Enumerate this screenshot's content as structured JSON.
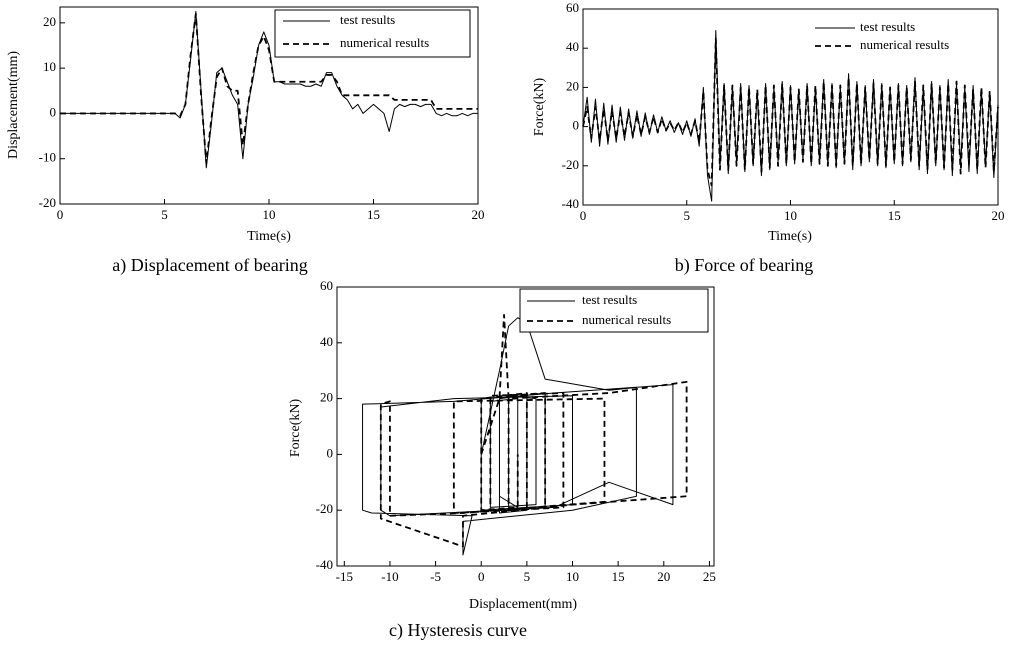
{
  "chart_data": [
    {
      "type": "line",
      "caption": "a) Displacement of bearing",
      "x_label": "Time(s)",
      "y_label": "Displacement(mm)",
      "x": [
        0,
        0.25,
        0.5,
        0.75,
        1,
        1.25,
        1.5,
        1.75,
        2,
        2.25,
        2.5,
        2.75,
        3,
        3.25,
        3.5,
        3.75,
        4,
        4.25,
        4.5,
        4.75,
        5,
        5.25,
        5.5,
        5.75,
        6,
        6.25,
        6.5,
        6.75,
        7,
        7.25,
        7.5,
        7.75,
        8,
        8.25,
        8.5,
        8.75,
        9,
        9.25,
        9.5,
        9.75,
        10,
        10.25,
        10.5,
        10.75,
        11,
        11.25,
        11.5,
        11.75,
        12,
        12.25,
        12.5,
        12.75,
        13,
        13.25,
        13.5,
        13.75,
        14,
        14.25,
        14.5,
        14.75,
        15,
        15.25,
        15.5,
        15.75,
        16,
        16.25,
        16.5,
        16.75,
        17,
        17.25,
        17.5,
        17.75,
        18,
        18.25,
        18.5,
        18.75,
        19,
        19.25,
        19.5,
        19.75,
        20
      ],
      "series": [
        {
          "name": "test results",
          "color": "#000000",
          "style": "solid",
          "values": [
            0,
            0,
            0,
            0,
            0,
            0,
            0,
            0,
            0,
            0,
            0,
            0,
            0,
            0,
            0,
            0,
            0,
            0,
            0,
            0,
            0,
            0,
            0,
            -1,
            2,
            12,
            22.5,
            5,
            -12,
            -2,
            9,
            10,
            7,
            4,
            2,
            -10,
            2,
            8,
            15,
            18,
            15,
            7,
            7,
            6.5,
            6.5,
            6.5,
            6.5,
            6,
            6,
            6.5,
            6,
            9,
            9,
            6,
            4,
            3,
            1,
            2,
            0,
            1,
            2,
            1,
            0,
            -4,
            1,
            2,
            1.5,
            2,
            2,
            1.5,
            2,
            2,
            0,
            -0.5,
            0,
            -0.5,
            -0.5,
            0,
            -0.5,
            0,
            0
          ]
        },
        {
          "name": "numerical results",
          "color": "#000000",
          "style": "dashed",
          "values": [
            0,
            0,
            0,
            0,
            0,
            0,
            0,
            0,
            0,
            0,
            0,
            0,
            0,
            0,
            0,
            0,
            0,
            0,
            0,
            0,
            0,
            0,
            0,
            -0.5,
            2,
            13,
            22,
            4,
            -11,
            -1,
            8,
            10,
            6,
            5,
            5,
            -7,
            2,
            9,
            15,
            17,
            14,
            7,
            7,
            7,
            7,
            7,
            7,
            7,
            7,
            7,
            7,
            8.5,
            8.5,
            7,
            4,
            4,
            4,
            4,
            4,
            4,
            4,
            4,
            4,
            4,
            3,
            3,
            3,
            3,
            3,
            3,
            3,
            3,
            1,
            1,
            1,
            1,
            1,
            1,
            1,
            1,
            1
          ]
        }
      ],
      "xlim": [
        0,
        20
      ],
      "xticks": [
        0,
        5,
        10,
        15,
        20
      ],
      "ylim": [
        -20,
        23.5
      ],
      "yticks": [
        -20,
        -10,
        0,
        10,
        20
      ]
    },
    {
      "type": "line",
      "caption": "b) Force of bearing",
      "x_label": "Time(s)",
      "y_label": "Force(kN)",
      "x": [
        0,
        0.2,
        0.4,
        0.6,
        0.8,
        1,
        1.2,
        1.4,
        1.6,
        1.8,
        2,
        2.2,
        2.4,
        2.6,
        2.8,
        3,
        3.2,
        3.4,
        3.6,
        3.8,
        4,
        4.2,
        4.4,
        4.6,
        4.8,
        5,
        5.2,
        5.4,
        5.6,
        5.8,
        6,
        6.2,
        6.4,
        6.6,
        6.8,
        7,
        7.2,
        7.4,
        7.6,
        7.8,
        8,
        8.2,
        8.4,
        8.6,
        8.8,
        9,
        9.2,
        9.4,
        9.6,
        9.8,
        10,
        10.2,
        10.4,
        10.6,
        10.8,
        11,
        11.2,
        11.4,
        11.6,
        11.8,
        12,
        12.2,
        12.4,
        12.6,
        12.8,
        13,
        13.2,
        13.4,
        13.6,
        13.8,
        14,
        14.2,
        14.4,
        14.6,
        14.8,
        15,
        15.2,
        15.4,
        15.6,
        15.8,
        16,
        16.2,
        16.4,
        16.6,
        16.8,
        17,
        17.2,
        17.4,
        17.6,
        17.8,
        18,
        18.2,
        18.4,
        18.6,
        18.8,
        19,
        19.2,
        19.4,
        19.6,
        19.8,
        20
      ],
      "series": [
        {
          "name": "test results",
          "color": "#000000",
          "style": "solid",
          "values": [
            0,
            15,
            -8,
            14,
            -10,
            12,
            -9,
            11,
            -8,
            10,
            -7,
            9,
            -6,
            8,
            -5,
            7,
            -4,
            6,
            -3,
            5,
            -2,
            3,
            -3,
            2,
            -4,
            3,
            -5,
            4,
            -10,
            20,
            -25,
            -38,
            49,
            -20,
            22,
            -24,
            20,
            -18,
            22,
            -23,
            21,
            -20,
            18,
            -25,
            22,
            -22,
            20,
            -18,
            23,
            -20,
            21,
            -19,
            18,
            -17,
            22,
            -20,
            20,
            -18,
            24,
            -20,
            22,
            -21,
            20,
            -19,
            27,
            -22,
            23,
            -20,
            21,
            -18,
            24,
            -20,
            22,
            -21,
            20,
            -19,
            22,
            -20,
            21,
            -18,
            25,
            -22,
            20,
            -24,
            23,
            -20,
            21,
            -22,
            24,
            -25,
            22,
            -20,
            20,
            -23,
            21,
            -24,
            19,
            -20,
            18,
            -26,
            12
          ]
        },
        {
          "name": "numerical results",
          "color": "#000000",
          "style": "dashed",
          "values": [
            0,
            10,
            -6,
            10,
            -7,
            9,
            -7,
            8,
            -6,
            7,
            -5,
            7,
            -5,
            6,
            -4,
            5,
            -3,
            5,
            -3,
            4,
            -2,
            2,
            -2,
            2,
            -3,
            2,
            -4,
            3,
            -8,
            18,
            -22,
            -30,
            45,
            -22,
            21,
            -22,
            21,
            -20,
            20,
            -22,
            20,
            -19,
            19,
            -23,
            21,
            -21,
            21,
            -20,
            22,
            -19,
            20,
            -18,
            19,
            -18,
            21,
            -19,
            21,
            -19,
            23,
            -20,
            21,
            -20,
            21,
            -19,
            25,
            -20,
            22,
            -19,
            20,
            -17,
            22,
            -19,
            21,
            -20,
            20,
            -18,
            21,
            -19,
            20,
            -17,
            23,
            -20,
            21,
            -22,
            22,
            -19,
            20,
            -21,
            22,
            -22,
            23,
            -24,
            21,
            -19,
            19,
            -22,
            20,
            -21,
            18,
            -23,
            10
          ]
        }
      ],
      "xlim": [
        0,
        20
      ],
      "xticks": [
        0,
        5,
        10,
        15,
        20
      ],
      "ylim": [
        -40,
        60
      ],
      "yticks": [
        -40,
        -20,
        0,
        20,
        40,
        60
      ]
    },
    {
      "type": "line",
      "caption": "c) Hysteresis curve",
      "x_label": "Displacement(mm)",
      "y_label": "Force(kN)",
      "series": [
        {
          "name": "test results",
          "color": "#000000",
          "style": "solid",
          "x": [
            0,
            1,
            2,
            3,
            4,
            5,
            7,
            14,
            17,
            17,
            10,
            -2,
            -2,
            -1,
            -12,
            -13,
            -13,
            -3,
            8,
            21,
            21,
            14,
            8,
            -10,
            -11,
            -11,
            -3,
            10,
            10,
            0,
            0,
            5,
            5,
            2,
            2,
            7,
            7,
            3,
            3,
            6,
            6,
            1,
            1,
            4,
            4,
            2,
            2
          ],
          "values": [
            0,
            15,
            30,
            46,
            49,
            47,
            27,
            23,
            24,
            -15,
            -20,
            -24,
            -36,
            -22,
            -21,
            -20,
            18,
            19,
            22,
            25,
            -18,
            -10,
            -19,
            -22,
            -20,
            17,
            20,
            21,
            -18,
            -20,
            20,
            21,
            -20,
            -21,
            20,
            22,
            -19,
            -20,
            21,
            20,
            -18,
            -19,
            19,
            20,
            -19,
            -15,
            0
          ]
        },
        {
          "name": "numerical results",
          "color": "#000000",
          "style": "dashed",
          "x": [
            0,
            2,
            2.5,
            3,
            14,
            22.5,
            22.5,
            10,
            -2,
            -2,
            -11,
            -11,
            -10,
            -10,
            -2,
            13.5,
            13.5,
            -3,
            -3,
            9,
            9,
            1,
            1,
            7,
            7,
            3,
            3,
            5,
            5,
            0,
            0,
            4,
            4
          ],
          "values": [
            0,
            20,
            50,
            20,
            22,
            26,
            -15,
            -18,
            -22,
            -33,
            -23,
            18,
            19,
            -22,
            -21,
            -17,
            20,
            19,
            -21,
            -19,
            22,
            21,
            -20,
            -19,
            22,
            21,
            -20,
            -19,
            22,
            20,
            -20,
            -19,
            0
          ]
        }
      ],
      "xlim": [
        -15.8,
        25.5
      ],
      "xticks": [
        -15,
        -10,
        -5,
        0,
        5,
        10,
        15,
        20,
        25
      ],
      "ylim": [
        -40,
        60
      ],
      "yticks": [
        -40,
        -20,
        0,
        20,
        40,
        60
      ]
    }
  ]
}
